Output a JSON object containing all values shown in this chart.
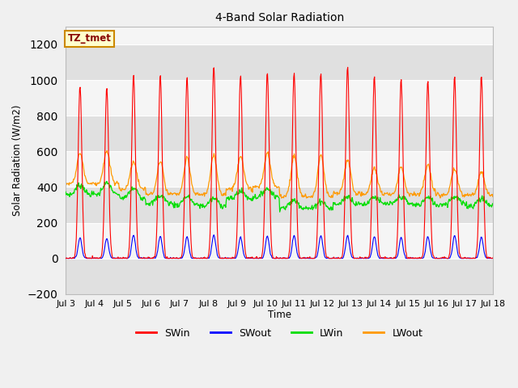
{
  "title": "4-Band Solar Radiation",
  "ylabel": "Solar Radiation (W/m2)",
  "xlabel": "Time",
  "xlim_days": [
    3,
    18
  ],
  "ylim": [
    -200,
    1300
  ],
  "yticks": [
    -200,
    0,
    200,
    400,
    600,
    800,
    1000,
    1200
  ],
  "xtick_labels": [
    "Jul 3",
    "Jul 4",
    "Jul 5",
    "Jul 6",
    "Jul 7",
    "Jul 8",
    "Jul 9",
    "Jul 10",
    "Jul 11",
    "Jul 12",
    "Jul 13",
    "Jul 14",
    "Jul 15",
    "Jul 16",
    "Jul 17",
    "Jul 18"
  ],
  "xtick_positions": [
    3,
    4,
    5,
    6,
    7,
    8,
    9,
    10,
    11,
    12,
    13,
    14,
    15,
    16,
    17,
    18
  ],
  "annotation_text": "TZ_tmet",
  "annotation_bg": "#ffffcc",
  "annotation_border": "#cc8800",
  "colors": {
    "SWin": "#ff0000",
    "SWout": "#0000ff",
    "LWin": "#00dd00",
    "LWout": "#ff9900"
  },
  "bg_color": "#f0f0f0",
  "plot_bg_light": "#f5f5f5",
  "plot_bg_dark": "#e0e0e0",
  "grid_color": "#ffffff",
  "SWin_peaks": [
    970,
    960,
    1035,
    1030,
    1020,
    1080,
    1030,
    1045,
    1040,
    1040,
    1080,
    1025,
    1005,
    1000,
    1020,
    1025
  ],
  "SWout_peaks": [
    115,
    110,
    130,
    125,
    120,
    130,
    120,
    125,
    128,
    128,
    128,
    122,
    118,
    122,
    128,
    120
  ],
  "LWin_night": [
    360,
    360,
    340,
    310,
    300,
    295,
    335,
    345,
    285,
    280,
    305,
    305,
    305,
    300,
    305,
    295
  ],
  "LWin_day_bump": [
    50,
    60,
    50,
    40,
    45,
    40,
    40,
    45,
    40,
    40,
    40,
    40,
    40,
    40,
    40,
    40
  ],
  "LWout_night": [
    420,
    420,
    390,
    360,
    360,
    360,
    390,
    400,
    350,
    345,
    365,
    360,
    360,
    360,
    355,
    355
  ],
  "LWout_day_peak": [
    590,
    600,
    545,
    545,
    560,
    575,
    580,
    590,
    575,
    580,
    555,
    510,
    515,
    525,
    500,
    490
  ],
  "hours_per_day": 48
}
